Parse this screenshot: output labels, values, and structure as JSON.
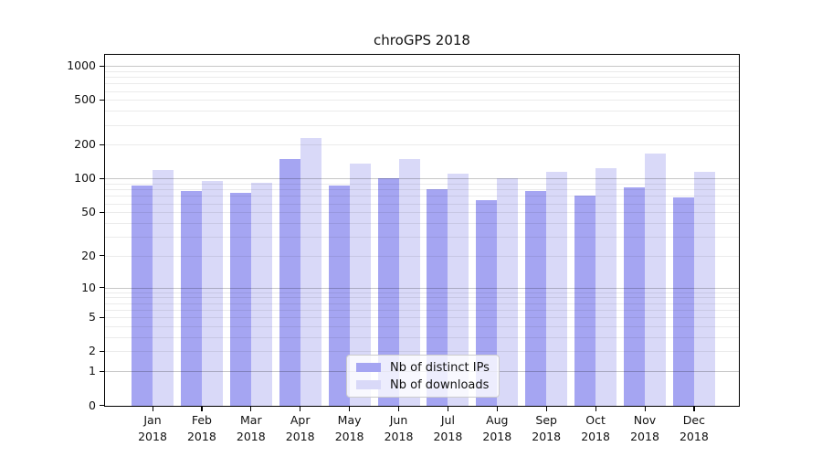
{
  "chart_data": {
    "type": "bar",
    "title": "chroGPS 2018",
    "categories": [
      "Jan",
      "Feb",
      "Mar",
      "Apr",
      "May",
      "Jun",
      "Jul",
      "Aug",
      "Sep",
      "Oct",
      "Nov",
      "Dec"
    ],
    "year_label": "2018",
    "series": [
      {
        "name": "Nb of distinct IPs",
        "color": "#a5a5f2",
        "values": [
          86,
          77,
          75,
          150,
          86,
          100,
          80,
          64,
          77,
          71,
          84,
          68
        ]
      },
      {
        "name": "Nb of downloads",
        "color": "#d9d9f8",
        "values": [
          120,
          95,
          92,
          230,
          136,
          150,
          110,
          100,
          114,
          123,
          168,
          114
        ]
      }
    ],
    "yscale": "log1p",
    "y_ticks": [
      0,
      1,
      2,
      5,
      10,
      20,
      50,
      100,
      200,
      500,
      1000
    ],
    "ylim": [
      0,
      1250
    ],
    "xlabel": "",
    "ylabel": "",
    "grid": true,
    "legend_position": "bottom-center"
  }
}
